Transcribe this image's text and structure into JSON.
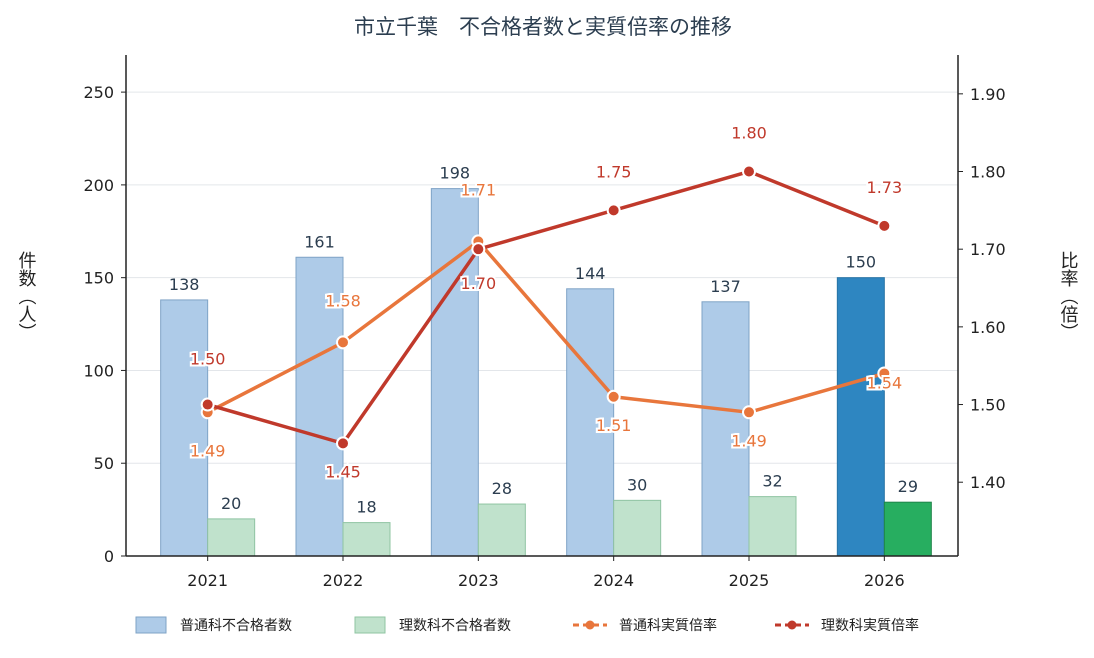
{
  "chart_data": {
    "type": "bar",
    "title": "市立千葉　不合格者数と実質倍率の推移",
    "xlabel": "",
    "ylabel": "件数（人）",
    "y2label": "比率（倍）",
    "categories": [
      "2021",
      "2022",
      "2023",
      "2024",
      "2025",
      "2026"
    ],
    "ylim": [
      0,
      270
    ],
    "yticks": [
      0,
      50,
      100,
      150,
      200,
      250
    ],
    "y2lim": [
      1.305,
      1.95
    ],
    "y2ticks": [
      1.4,
      1.5,
      1.6,
      1.7,
      1.8,
      1.9
    ],
    "grid": true,
    "legend_position": "bottom",
    "series": [
      {
        "name": "普通科不合格者数",
        "type": "bar",
        "axis": "left",
        "values": [
          138,
          161,
          198,
          144,
          137,
          150
        ],
        "labels": [
          "138",
          "161",
          "198",
          "144",
          "137",
          "150"
        ],
        "color": "#aecbe8",
        "highlight_color": "#2e86c1"
      },
      {
        "name": "理数科不合格者数",
        "type": "bar",
        "axis": "left",
        "values": [
          20,
          18,
          28,
          30,
          32,
          29
        ],
        "labels": [
          "20",
          "18",
          "28",
          "30",
          "32",
          "29"
        ],
        "color": "#c0e2cc",
        "highlight_color": "#27ae60"
      },
      {
        "name": "普通科実質倍率",
        "type": "line",
        "axis": "right",
        "values": [
          1.49,
          1.58,
          1.71,
          1.51,
          1.49,
          1.54
        ],
        "labels": [
          "1.49",
          "1.58",
          "1.71",
          "1.51",
          "1.49",
          "1.54"
        ],
        "color": "#e8763c"
      },
      {
        "name": "理数科実質倍率",
        "type": "line",
        "axis": "right",
        "values": [
          1.5,
          1.45,
          1.7,
          1.75,
          1.8,
          1.73
        ],
        "labels": [
          "1.50",
          "1.45",
          "1.70",
          "1.75",
          "1.80",
          "1.73"
        ],
        "color": "#c0392b"
      }
    ],
    "highlight_category": "2026"
  }
}
